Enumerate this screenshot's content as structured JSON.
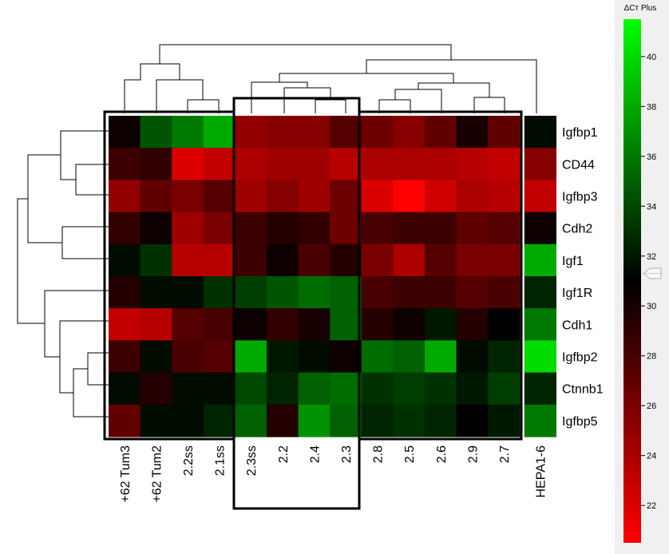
{
  "chart_data": {
    "type": "heatmap",
    "rows": [
      "Igfbp1",
      "CD44",
      "Igfbp3",
      "Cdh2",
      "Igf1",
      "Igf1R",
      "Cdh1",
      "Igfbp2",
      "Ctnnb1",
      "Igfbp5"
    ],
    "columns": [
      "+62 Tum3",
      "+62 Tum2",
      "2.2ss",
      "2.1ss",
      "2.3ss",
      "2.2",
      "2.4",
      "2.3",
      "2.8",
      "2.5",
      "2.6",
      "2.9",
      "2.7",
      "HEPA1-6"
    ],
    "values": [
      [
        30.5,
        34.5,
        36.0,
        38.0,
        25.0,
        25.5,
        25.5,
        27.5,
        26.5,
        25.5,
        27.0,
        30.0,
        27.0,
        31.5
      ],
      [
        28.5,
        29.0,
        22.0,
        23.0,
        24.0,
        24.5,
        24.5,
        23.5,
        24.0,
        24.0,
        24.0,
        23.5,
        23.0,
        25.5
      ],
      [
        25.0,
        27.0,
        26.0,
        27.5,
        24.5,
        25.5,
        24.5,
        26.5,
        22.0,
        20.5,
        22.5,
        24.0,
        23.5,
        23.0
      ],
      [
        29.0,
        30.5,
        24.5,
        26.0,
        28.5,
        29.5,
        29.0,
        26.5,
        28.0,
        28.5,
        28.5,
        27.0,
        27.5,
        30.5
      ],
      [
        31.5,
        33.0,
        23.5,
        23.5,
        28.5,
        30.5,
        28.0,
        29.5,
        26.0,
        24.0,
        27.5,
        26.0,
        26.0,
        38.0
      ],
      [
        29.5,
        31.5,
        31.5,
        33.0,
        33.5,
        34.5,
        35.5,
        35.0,
        28.0,
        28.5,
        28.5,
        27.5,
        28.0,
        32.5
      ],
      [
        23.0,
        23.5,
        27.5,
        28.0,
        30.5,
        29.0,
        30.0,
        35.0,
        29.5,
        30.5,
        32.0,
        29.5,
        31.0,
        36.0
      ],
      [
        28.5,
        31.5,
        28.0,
        27.5,
        38.0,
        32.0,
        31.5,
        30.5,
        35.5,
        35.0,
        38.0,
        31.5,
        32.5,
        40.0
      ],
      [
        31.5,
        29.5,
        31.5,
        31.5,
        34.0,
        32.5,
        35.0,
        35.5,
        33.0,
        33.5,
        33.0,
        32.0,
        33.5,
        32.5
      ],
      [
        27.0,
        31.5,
        31.5,
        32.5,
        35.0,
        29.5,
        37.0,
        35.0,
        32.5,
        33.0,
        32.5,
        31.0,
        32.0,
        36.0
      ]
    ],
    "colorbar": {
      "title": "ΔCт Plus",
      "ticks": [
        40,
        38,
        36,
        34,
        32,
        30,
        28,
        26,
        24,
        22
      ],
      "range": [
        20.5,
        41.5
      ],
      "mid": 31,
      "low_color": "#ff0000",
      "mid_color": "#000000",
      "high_color": "#00ff00"
    },
    "column_groups": [
      [
        "+62 Tum3",
        "+62 Tum2",
        "2.2ss",
        "2.1ss"
      ],
      [
        "2.3ss",
        "2.2",
        "2.4",
        "2.3"
      ],
      [
        "2.8",
        "2.5",
        "2.6",
        "2.9",
        "2.7"
      ],
      [
        "HEPA1-6"
      ]
    ]
  }
}
